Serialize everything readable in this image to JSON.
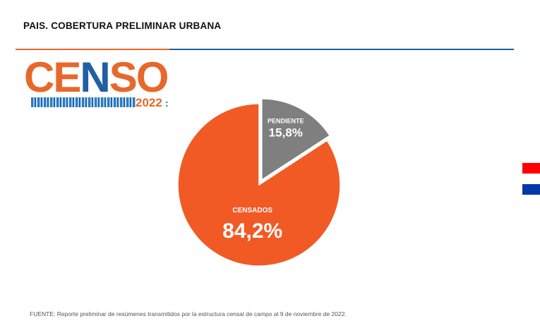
{
  "header": {
    "title": "PAIS. COBERTURA PRELIMINAR URBANA"
  },
  "logo": {
    "letters": [
      "C",
      "E",
      "N",
      "S",
      "O"
    ],
    "year": "2022",
    "mark": ":"
  },
  "colors": {
    "orange": "#e8682b",
    "blue": "#1f5fa5",
    "slice_censados": "#f15a24",
    "slice_pendiente": "#7f7f7f",
    "flag_red": "#ff0000",
    "flag_blue": "#0038a8"
  },
  "chart_data": {
    "type": "pie",
    "slices": [
      {
        "label": "PENDIENTE",
        "value": 15.8,
        "value_label": "15,8%",
        "color": "#7f7f7f",
        "exploded": true
      },
      {
        "label": "CENSADOS",
        "value": 84.2,
        "value_label": "84,2%",
        "color": "#f15a24",
        "exploded": false
      }
    ],
    "start": "12 o'clock, clockwise"
  },
  "footer": {
    "source": "FUENTE:  Reporte preliminar  de resúmenes transmitidos por la estructura censal de campo al 9 de noviembre  de 2022."
  }
}
